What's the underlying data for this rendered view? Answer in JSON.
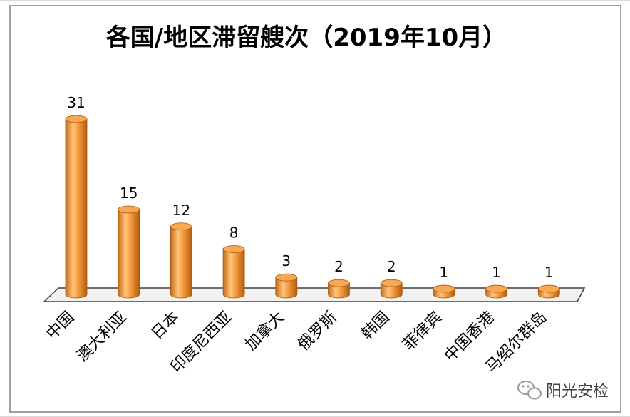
{
  "chart_data": {
    "type": "bar",
    "title": "各国/地区滞留艘次（2019年10月）",
    "categories": [
      "中国",
      "澳大利亚",
      "日本",
      "印度尼西亚",
      "加拿大",
      "俄罗斯",
      "韩国",
      "菲律宾",
      "中国香港",
      "马绍尔群岛"
    ],
    "values": [
      31,
      15,
      12,
      8,
      3,
      2,
      2,
      1,
      1,
      1
    ],
    "xlabel": "",
    "ylabel": "",
    "ylim": [
      0,
      31
    ],
    "grid": false,
    "legend": "none",
    "data_labels": true,
    "bar_style": "3d-cylinder",
    "colors": {
      "bar": "#f39a3c",
      "bar_dark": "#c56a16",
      "bar_light": "#ffd6a3",
      "floor": "#f2f2f2",
      "border": "#404040",
      "text": "#000000"
    }
  },
  "watermark": {
    "icon": "wechat-icon",
    "text": "阳光安检"
  }
}
